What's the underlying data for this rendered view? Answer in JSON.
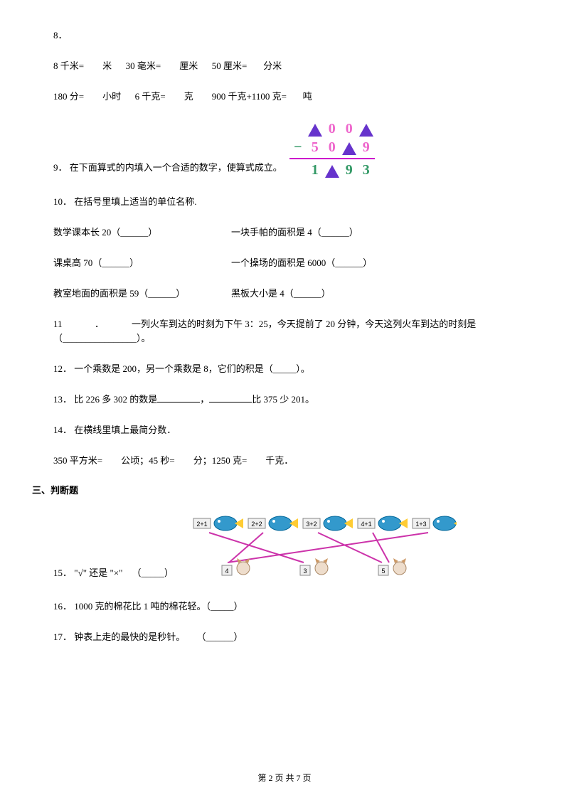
{
  "q8": {
    "num": "8．",
    "lines": [
      [
        "8 千米=",
        "米",
        "30 毫米=",
        "厘米",
        "50 厘米=",
        "分米"
      ],
      [
        "180 分=",
        "小时",
        "6 千克=",
        "克",
        "900 千克+1100 克=",
        "吨"
      ]
    ]
  },
  "q9": {
    "num": "9．",
    "text": "在下面算式的内填入一个合适的数字，使算式成立。",
    "arith": {
      "row1": [
        "tri",
        "0",
        "0",
        "tri"
      ],
      "row2_sign": "−",
      "row2": [
        "5",
        "0",
        "tri",
        "9"
      ],
      "row3": [
        "1",
        "tri",
        "9",
        "3"
      ]
    }
  },
  "q10": {
    "num": "10．",
    "text": "在括号里填上适当的单位名称.",
    "rows": [
      {
        "a": "数学课本长 20（______）",
        "b": "一块手帕的面积是 4（______）"
      },
      {
        "a": "课桌高 70（______）",
        "b": "一个操场的面积是 6000（______）"
      },
      {
        "a": "教室地面的面积是 59（______）",
        "b": "黑板大小是 4（______）"
      }
    ]
  },
  "q11": {
    "num": "11",
    "dot": "．",
    "text": "一列火车到达的时刻为下午 3：25，今天提前了 20 分钟，今天这列火车到达的时刻是",
    "suffix": "（________________）。"
  },
  "q12": {
    "num": "12．",
    "text": "一个乘数是 200，另一个乘数是 8，它们的积是（_____）。"
  },
  "q13": {
    "num": "13．",
    "text_a": "比 226 多 302 的数是",
    "text_b": "，",
    "text_c": "比 375 少 201。"
  },
  "q14": {
    "num": "14．",
    "text": "在横线里填上最简分数．",
    "line2": [
      "350 平方米=",
      "公顷；45 秒=",
      "分；1250 克=",
      "千克．"
    ]
  },
  "section3": "三、判断题",
  "q15": {
    "num": "15．",
    "text": "\"√\" 还是 \"×\"",
    "blank": "（_____）",
    "fish_labels": [
      "2+1",
      "2+2",
      "3+2",
      "4+1",
      "1+3"
    ],
    "cat_labels": [
      "4",
      "3",
      "5"
    ]
  },
  "q16": {
    "num": "16．",
    "text": "1000 克的棉花比 1 吨的棉花轻。（_____）"
  },
  "q17": {
    "num": "17．",
    "text": "钟表上走的最快的是秒针。",
    "blank": "（______）"
  },
  "footer": "第 2 页 共 7 页"
}
